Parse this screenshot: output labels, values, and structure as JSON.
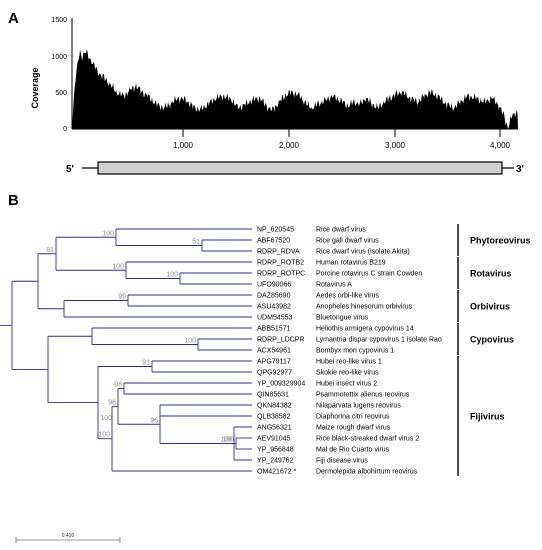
{
  "panel_a": {
    "label": "A",
    "ylabel": "Coverage",
    "yticks": [
      "0",
      "500",
      "1000",
      "1500"
    ],
    "xticks": [
      "1,000",
      "2,000",
      "3,000",
      "4,000"
    ],
    "five_prime": "5'",
    "three_prime": "3'"
  },
  "panel_b": {
    "label": "B",
    "scale_label": "0.400",
    "taxa": [
      {
        "accession": "NP_620545",
        "name": "Rice dwarf virus"
      },
      {
        "accession": "ABF67520",
        "name": "Rice gall dwarf virus"
      },
      {
        "accession": "RDRP_RDVA",
        "name": "Rice dwarf virus (isolate Akita)"
      },
      {
        "accession": "RDRP_ROTB2",
        "name": "Human rotavirus B219"
      },
      {
        "accession": "RDRP_ROTPC",
        "name": "Porcine rotavirus C strain Cowden"
      },
      {
        "accession": "UFO90066",
        "name": "Rotavirus A"
      },
      {
        "accession": "DAZ85690",
        "name": "Aedes orbi-like virus"
      },
      {
        "accession": "ASU43982",
        "name": "Anopheles hinesorum orbivirus"
      },
      {
        "accession": "UDM54553",
        "name": "Bluetongue virus"
      },
      {
        "accession": "ABB51571",
        "name": "Heliothis armigera cypovirus 14"
      },
      {
        "accession": "RDRP_LDCPR",
        "name": "Lymantria dispar cypovirus 1 isolate Rao"
      },
      {
        "accession": "ACX54961",
        "name": "Bombyx mori cypovirus 1"
      },
      {
        "accession": "APG79117",
        "name": "Hubei reo-like virus 1"
      },
      {
        "accession": "QPG92977",
        "name": "Skokie reo-like virus"
      },
      {
        "accession": "YP_009329904",
        "name": "Hubei insect virus 2"
      },
      {
        "accession": "QIN85631",
        "name": "Psammotettix alienus reovirus"
      },
      {
        "accession": "QKN84382",
        "name": "Nilaparvata lugens reovirus"
      },
      {
        "accession": "QLB38582",
        "name": "Diaphorina citri reovirus"
      },
      {
        "accession": "ANG56321",
        "name": "Maize rough dwarf virus"
      },
      {
        "accession": "AEV91045",
        "name": "Rice black-streaked dwarf virus 2"
      },
      {
        "accession": "YP_956848",
        "name": "Mal de Rio Cuarto virus"
      },
      {
        "accession": "YP_249762",
        "name": "Fiji disease virus"
      },
      {
        "accession": "OM421672 *",
        "name": "Dermolepida albohirtum reovirus"
      }
    ],
    "groups": [
      {
        "name": "Phytoreovirus",
        "first": 0,
        "last": 2
      },
      {
        "name": "Rotavirus",
        "first": 3,
        "last": 5
      },
      {
        "name": "Orbivirus",
        "first": 6,
        "last": 8
      },
      {
        "name": "Cypovirus",
        "first": 9,
        "last": 11
      },
      {
        "name": "Fijivirus",
        "first": 12,
        "last": 22
      }
    ],
    "bootstrap": [
      "100",
      "51",
      "100",
      "100",
      "81",
      "99",
      "100",
      "91",
      "96",
      "100",
      "98",
      "96",
      "100",
      "100",
      "100"
    ],
    "colors": {
      "tree": "#2b2f8f",
      "bootstrap": "#8a8a8a"
    }
  }
}
